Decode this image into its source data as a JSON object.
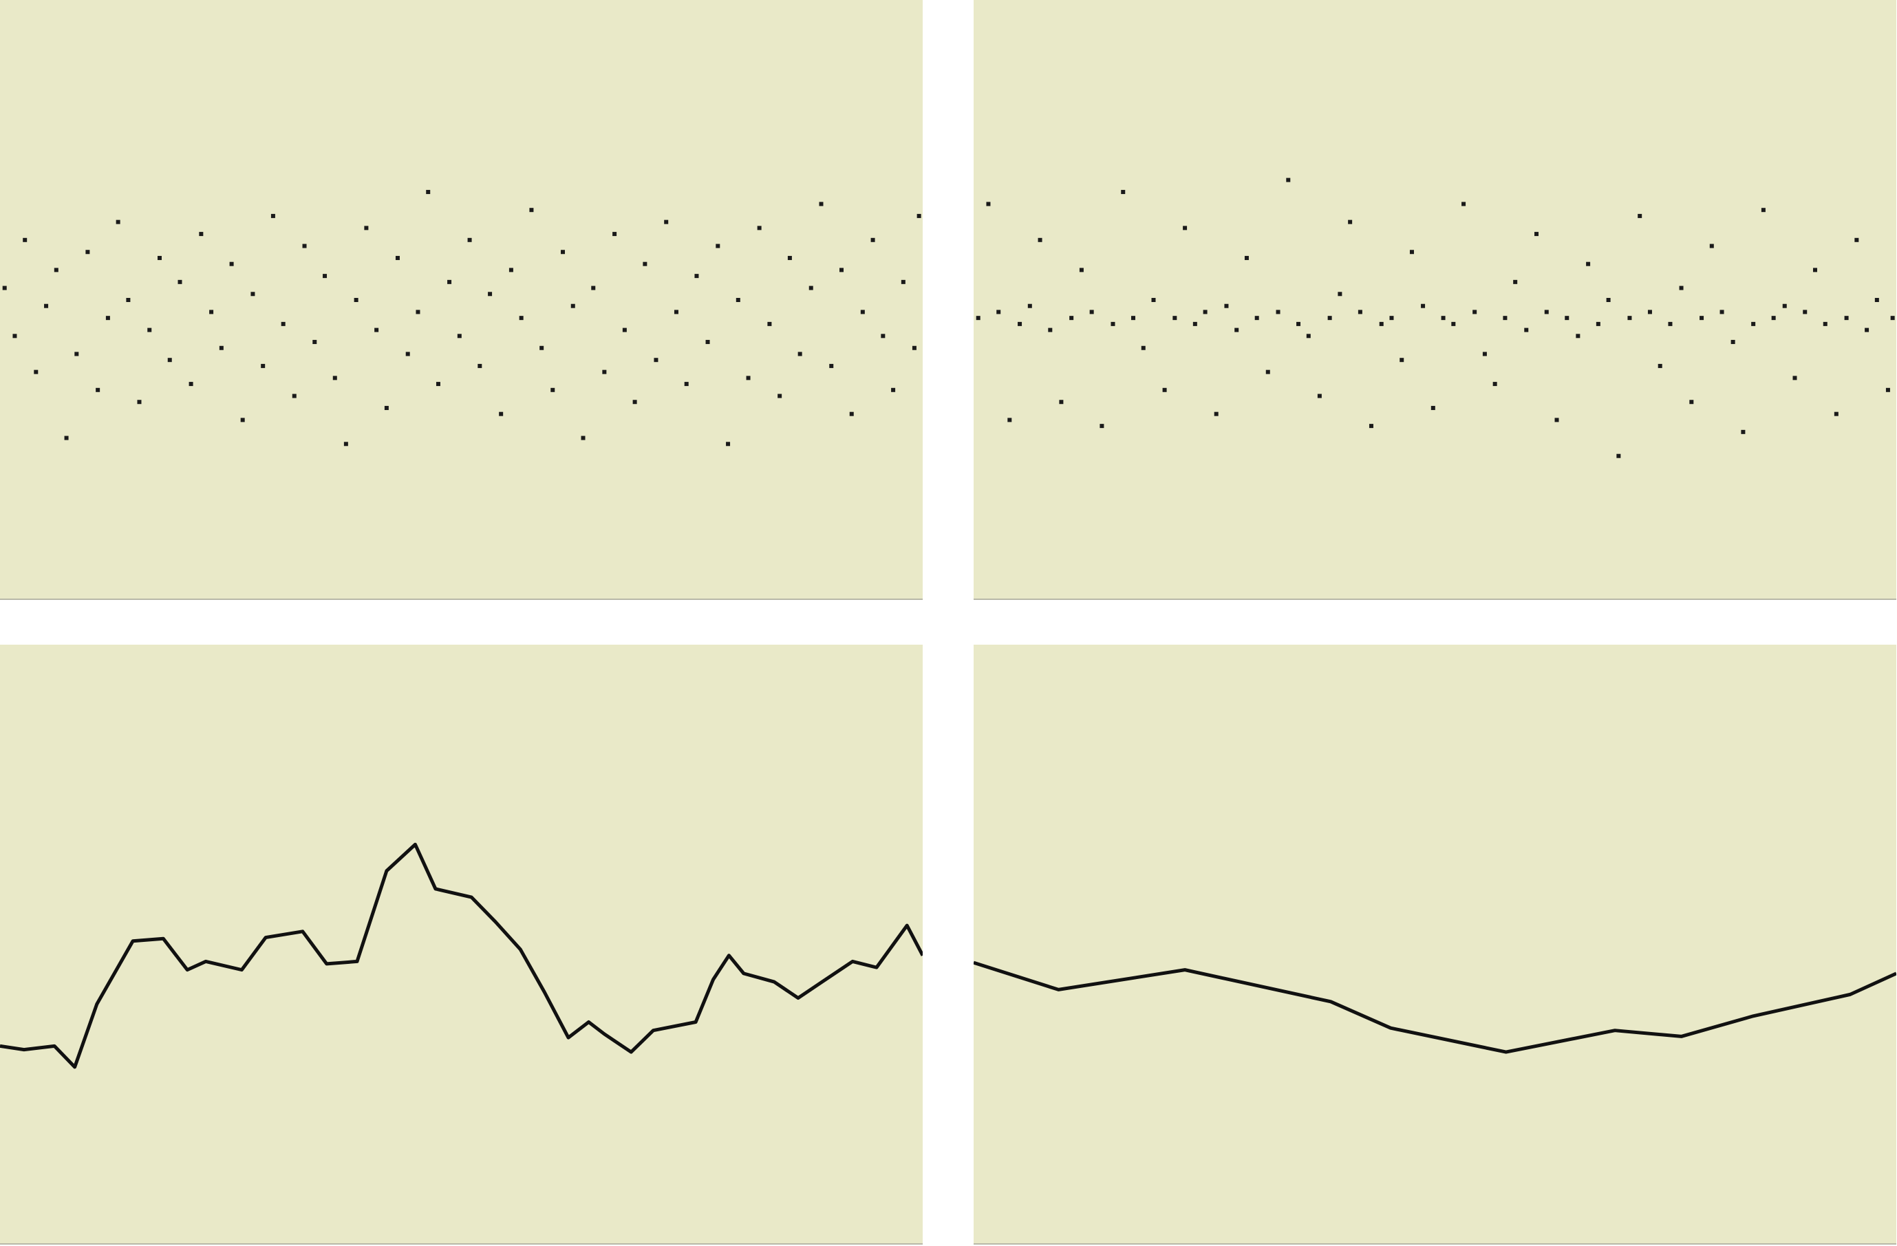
{
  "chart_data": [
    {
      "type": "scatter",
      "color": "#1a1a1a",
      "xlim": [
        0,
        100
      ],
      "ylim": [
        0,
        100
      ],
      "x": [
        0.5,
        1.6,
        2.7,
        3.9,
        5.0,
        6.1,
        7.2,
        8.3,
        9.5,
        10.6,
        11.7,
        12.8,
        13.9,
        15.1,
        16.2,
        17.3,
        18.4,
        19.5,
        20.7,
        21.8,
        22.9,
        24.0,
        25.1,
        26.3,
        27.4,
        28.5,
        29.6,
        30.7,
        31.9,
        33.0,
        34.1,
        35.2,
        36.3,
        37.5,
        38.6,
        39.7,
        40.8,
        41.9,
        43.1,
        44.2,
        45.3,
        46.4,
        47.5,
        48.7,
        49.8,
        50.9,
        52.0,
        53.1,
        54.3,
        55.4,
        56.5,
        57.6,
        58.7,
        59.9,
        61.0,
        62.1,
        63.2,
        64.3,
        65.5,
        66.6,
        67.7,
        68.8,
        69.9,
        71.1,
        72.2,
        73.3,
        74.4,
        75.5,
        76.7,
        77.8,
        78.9,
        80.0,
        81.1,
        82.3,
        83.4,
        84.5,
        85.6,
        86.7,
        87.9,
        89.0,
        90.1,
        91.2,
        92.3,
        93.5,
        94.6,
        95.7,
        96.8,
        97.9,
        99.1,
        99.6
      ],
      "values": [
        52,
        44,
        60,
        38,
        49,
        55,
        27,
        41,
        58,
        35,
        47,
        63,
        50,
        33,
        45,
        57,
        40,
        53,
        36,
        61,
        48,
        42,
        56,
        30,
        51,
        39,
        64,
        46,
        34,
        59,
        43,
        54,
        37,
        26,
        50,
        62,
        45,
        32,
        57,
        41,
        48,
        68,
        36,
        53,
        44,
        60,
        39,
        51,
        31,
        55,
        47,
        65,
        42,
        35,
        58,
        49,
        27,
        52,
        38,
        61,
        45,
        33,
        56,
        40,
        63,
        48,
        36,
        54,
        43,
        59,
        26,
        50,
        37,
        62,
        46,
        34,
        57,
        41,
        52,
        66,
        39,
        55,
        31,
        48,
        60,
        44,
        35,
        53,
        42,
        64
      ]
    },
    {
      "type": "scatter",
      "color": "#1a1a1a",
      "xlim": [
        0,
        100
      ],
      "ylim": [
        0,
        100
      ],
      "x": [
        0.5,
        1.6,
        2.7,
        3.9,
        5.0,
        6.1,
        7.2,
        8.3,
        9.5,
        10.6,
        11.7,
        12.8,
        13.9,
        15.1,
        16.2,
        17.3,
        18.4,
        19.5,
        20.7,
        21.8,
        22.9,
        24.0,
        25.1,
        26.3,
        27.4,
        28.5,
        29.6,
        30.7,
        31.9,
        33.0,
        34.1,
        35.2,
        36.3,
        37.5,
        38.6,
        39.7,
        40.8,
        41.9,
        43.1,
        44.2,
        45.3,
        46.4,
        47.5,
        48.7,
        49.8,
        50.9,
        52.0,
        53.1,
        54.3,
        55.4,
        56.5,
        57.6,
        58.7,
        59.9,
        61.0,
        62.1,
        63.2,
        64.3,
        65.5,
        66.6,
        67.7,
        68.8,
        69.9,
        71.1,
        72.2,
        73.3,
        74.4,
        75.5,
        76.7,
        77.8,
        78.9,
        80.0,
        81.1,
        82.3,
        83.4,
        84.5,
        85.6,
        86.7,
        87.9,
        89.0,
        90.1,
        91.2,
        92.3,
        93.5,
        94.6,
        95.7,
        96.8,
        97.9,
        99.1,
        99.6
      ],
      "values": [
        47,
        66,
        48,
        30,
        46,
        49,
        60,
        45,
        33,
        47,
        55,
        48,
        29,
        46,
        68,
        47,
        42,
        50,
        35,
        47,
        62,
        46,
        48,
        31,
        49,
        45,
        57,
        47,
        38,
        48,
        70,
        46,
        44,
        34,
        47,
        51,
        63,
        48,
        29,
        46,
        47,
        40,
        58,
        49,
        32,
        47,
        46,
        66,
        48,
        41,
        36,
        47,
        53,
        45,
        61,
        48,
        30,
        47,
        44,
        56,
        46,
        50,
        24,
        47,
        64,
        48,
        39,
        46,
        52,
        33,
        47,
        59,
        48,
        43,
        28,
        46,
        65,
        47,
        49,
        37,
        48,
        55,
        46,
        31,
        47,
        60,
        45,
        50,
        35,
        47
      ]
    },
    {
      "type": "line",
      "color": "#111111",
      "xlim": [
        0,
        100
      ],
      "ylim": [
        0,
        100
      ],
      "x": [
        0,
        2.6,
        5.9,
        8.1,
        10.5,
        14.4,
        17.7,
        20.3,
        22.3,
        26.2,
        28.8,
        32.8,
        35.4,
        38.7,
        41.9,
        45.0,
        47.2,
        51.1,
        53.7,
        56.4,
        59.0,
        61.6,
        63.8,
        65.5,
        68.4,
        70.8,
        75.4,
        77.3,
        79.0,
        80.6,
        83.9,
        86.5,
        89.1,
        92.4,
        95.0,
        98.3,
        100
      ],
      "values": [
        33.1,
        32.5,
        33.1,
        29.6,
        40.1,
        50.6,
        51.0,
        45.8,
        47.2,
        45.8,
        51.2,
        52.2,
        46.8,
        47.2,
        62.3,
        66.7,
        59.3,
        57.9,
        53.8,
        49.2,
        42.1,
        34.5,
        37.1,
        35.1,
        32.1,
        35.7,
        37.1,
        44.2,
        48.2,
        45.2,
        43.8,
        41.1,
        43.8,
        47.2,
        46.2,
        53.2,
        48.2
      ]
    },
    {
      "type": "line",
      "color": "#111111",
      "xlim": [
        0,
        100
      ],
      "ylim": [
        0,
        100
      ],
      "x": [
        0,
        9.2,
        22.9,
        38.7,
        45.2,
        57.7,
        69.5,
        76.7,
        84.5,
        95.0,
        100
      ],
      "values": [
        47.0,
        42.5,
        45.8,
        40.5,
        36.1,
        32.1,
        35.7,
        34.7,
        38.1,
        41.7,
        45.2
      ]
    }
  ]
}
